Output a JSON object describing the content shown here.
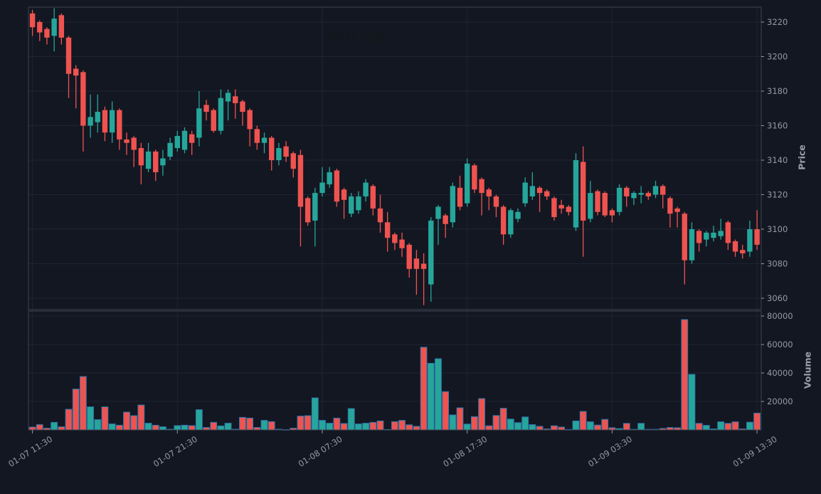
{
  "title": "ETH (2H)",
  "price_axis": {
    "label": "Price",
    "ticks": [
      3060,
      3080,
      3100,
      3120,
      3140,
      3160,
      3180,
      3200,
      3220
    ]
  },
  "volume_axis": {
    "label": "Volume",
    "ticks": [
      20000,
      40000,
      60000,
      80000
    ]
  },
  "x_axis": {
    "tick_labels": [
      "01-07 11:30",
      "01-07 21:30",
      "01-08 07:30",
      "01-08 17:30",
      "01-09 03:30",
      "01-09 13:30"
    ],
    "tick_indices": [
      0,
      20,
      40,
      60,
      80,
      100
    ]
  },
  "colors": {
    "background": "#131722",
    "up": "#26a69a",
    "down": "#ef5350",
    "volume_edge": "#2f78ad",
    "grid": "#1e2433",
    "spine": "#3e4350",
    "tick_text": "#949aa6",
    "title_text": "#14161c"
  },
  "chart_data": {
    "type": "candlestick",
    "title": "ETH (2H)",
    "panes": [
      "price",
      "volume"
    ],
    "ylabel_price": "Price",
    "ylabel_volume": "Volume",
    "ylim_price": [
      3050,
      3232
    ],
    "ylim_volume": [
      0,
      84000
    ],
    "grid": true,
    "columns": [
      "open",
      "high",
      "low",
      "close",
      "volume"
    ],
    "candles": [
      [
        3225,
        3227,
        3212,
        3217,
        2000
      ],
      [
        3220,
        3221,
        3209,
        3214,
        3700
      ],
      [
        3216,
        3217,
        3207,
        3211,
        1200
      ],
      [
        3212,
        3228,
        3203,
        3222,
        5300
      ],
      [
        3224,
        3225,
        3207,
        3211,
        2200
      ],
      [
        3211,
        3212,
        3176,
        3190,
        14500
      ],
      [
        3193,
        3195,
        3170,
        3189,
        28700
      ],
      [
        3191,
        3192,
        3145,
        3160,
        37500
      ],
      [
        3160,
        3178,
        3153,
        3165,
        16200
      ],
      [
        3162,
        3178,
        3156,
        3168,
        7200
      ],
      [
        3169,
        3171,
        3151,
        3156,
        16200
      ],
      [
        3156,
        3174,
        3150,
        3169,
        4200
      ],
      [
        3169,
        3170,
        3146,
        3152,
        3300
      ],
      [
        3152,
        3156,
        3143,
        3150,
        12500
      ],
      [
        3153,
        3154,
        3136,
        3146,
        10000
      ],
      [
        3147,
        3150,
        3126,
        3137,
        17500
      ],
      [
        3135,
        3150,
        3133,
        3145,
        4700
      ],
      [
        3145,
        3146,
        3128,
        3133,
        3300
      ],
      [
        3137,
        3146,
        3131,
        3141,
        2200
      ],
      [
        3142,
        3153,
        3140,
        3150,
        500
      ],
      [
        3147,
        3157,
        3145,
        3154,
        3000
      ],
      [
        3146,
        3159,
        3144,
        3157,
        3300
      ],
      [
        3155,
        3157,
        3143,
        3150,
        3000
      ],
      [
        3153,
        3180,
        3148,
        3170,
        14200
      ],
      [
        3172,
        3175,
        3163,
        3168,
        1700
      ],
      [
        3169,
        3170,
        3156,
        3157,
        5300
      ],
      [
        3157,
        3181,
        3155,
        3176,
        2800
      ],
      [
        3174,
        3181,
        3163,
        3179,
        4700
      ],
      [
        3177,
        3181,
        3164,
        3173,
        500
      ],
      [
        3174,
        3175,
        3160,
        3168,
        8800
      ],
      [
        3169,
        3170,
        3148,
        3158,
        8300
      ],
      [
        3158,
        3160,
        3146,
        3150,
        1700
      ],
      [
        3150,
        3156,
        3144,
        3153,
        6700
      ],
      [
        3153,
        3154,
        3134,
        3140,
        5800
      ],
      [
        3140,
        3150,
        3137,
        3147,
        500
      ],
      [
        3148,
        3151,
        3139,
        3142,
        200
      ],
      [
        3144,
        3145,
        3130,
        3135,
        1200
      ],
      [
        3143,
        3146,
        3090,
        3113,
        9700
      ],
      [
        3118,
        3119,
        3102,
        3104,
        10000
      ],
      [
        3105,
        3124,
        3090,
        3121,
        22500
      ],
      [
        3121,
        3136,
        3119,
        3127,
        6700
      ],
      [
        3126,
        3136,
        3124,
        3133,
        4700
      ],
      [
        3134,
        3135,
        3113,
        3116,
        8300
      ],
      [
        3123,
        3124,
        3106,
        3117,
        4500
      ],
      [
        3109,
        3121,
        3107,
        3119,
        15000
      ],
      [
        3111,
        3122,
        3109,
        3119,
        4200
      ],
      [
        3119,
        3129,
        3116,
        3127,
        4700
      ],
      [
        3125,
        3126,
        3108,
        3112,
        5300
      ],
      [
        3112,
        3120,
        3098,
        3104,
        6300
      ],
      [
        3104,
        3110,
        3087,
        3095,
        300
      ],
      [
        3097,
        3098,
        3088,
        3092,
        5800
      ],
      [
        3094,
        3098,
        3084,
        3089,
        6700
      ],
      [
        3091,
        3092,
        3072,
        3077,
        3600
      ],
      [
        3083,
        3088,
        3062,
        3077,
        2500
      ],
      [
        3080,
        3086,
        3056,
        3077,
        58100
      ],
      [
        3068,
        3107,
        3058,
        3105,
        46800
      ],
      [
        3106,
        3114,
        3091,
        3113,
        50000
      ],
      [
        3108,
        3109,
        3095,
        3103,
        26900
      ],
      [
        3104,
        3127,
        3101,
        3125,
        10500
      ],
      [
        3124,
        3131,
        3111,
        3113,
        15500
      ],
      [
        3115,
        3141,
        3113,
        3138,
        4100
      ],
      [
        3137,
        3138,
        3121,
        3123,
        9300
      ],
      [
        3129,
        3130,
        3108,
        3121,
        22000
      ],
      [
        3123,
        3124,
        3111,
        3119,
        2900
      ],
      [
        3119,
        3120,
        3107,
        3113,
        10100
      ],
      [
        3113,
        3114,
        3091,
        3097,
        15200
      ],
      [
        3097,
        3112,
        3095,
        3111,
        7600
      ],
      [
        3106,
        3112,
        3104,
        3110,
        5100
      ],
      [
        3115,
        3130,
        3113,
        3127,
        9100
      ],
      [
        3119,
        3133,
        3117,
        3125,
        3700
      ],
      [
        3124,
        3125,
        3110,
        3121,
        2500
      ],
      [
        3122,
        3123,
        3117,
        3119,
        700
      ],
      [
        3118,
        3119,
        3105,
        3107,
        2900
      ],
      [
        3114,
        3117,
        3109,
        3112,
        2000
      ],
      [
        3113,
        3114,
        3108,
        3110,
        300
      ],
      [
        3101,
        3144,
        3099,
        3140,
        6300
      ],
      [
        3139,
        3148,
        3084,
        3105,
        13000
      ],
      [
        3106,
        3128,
        3104,
        3121,
        5700
      ],
      [
        3122,
        3123,
        3108,
        3110,
        3400
      ],
      [
        3121,
        3122,
        3107,
        3108,
        7400
      ],
      [
        3111,
        3112,
        3104,
        3108,
        1500
      ],
      [
        3110,
        3126,
        3108,
        3124,
        900
      ],
      [
        3124,
        3125,
        3113,
        3119,
        4600
      ],
      [
        3118,
        3122,
        3114,
        3121,
        400
      ],
      [
        3120,
        3125,
        3115,
        3121,
        4600
      ],
      [
        3121,
        3122,
        3117,
        3119,
        400
      ],
      [
        3120,
        3128,
        3118,
        3125,
        400
      ],
      [
        3125,
        3126,
        3112,
        3120,
        1000
      ],
      [
        3118,
        3119,
        3101,
        3109,
        1700
      ],
      [
        3112,
        3113,
        3101,
        3110,
        1500
      ],
      [
        3109,
        3110,
        3068,
        3082,
        77500
      ],
      [
        3082,
        3104,
        3080,
        3100,
        39000
      ],
      [
        3099,
        3100,
        3087,
        3092,
        4600
      ],
      [
        3094,
        3099,
        3090,
        3098,
        3200
      ],
      [
        3095,
        3102,
        3093,
        3098,
        700
      ],
      [
        3096,
        3106,
        3094,
        3099,
        5700
      ],
      [
        3104,
        3105,
        3088,
        3092,
        4600
      ],
      [
        3093,
        3094,
        3084,
        3087,
        5700
      ],
      [
        3088,
        3091,
        3083,
        3086,
        700
      ],
      [
        3087,
        3105,
        3084,
        3100,
        5400
      ],
      [
        3100,
        3111,
        3088,
        3091,
        11800
      ]
    ]
  }
}
